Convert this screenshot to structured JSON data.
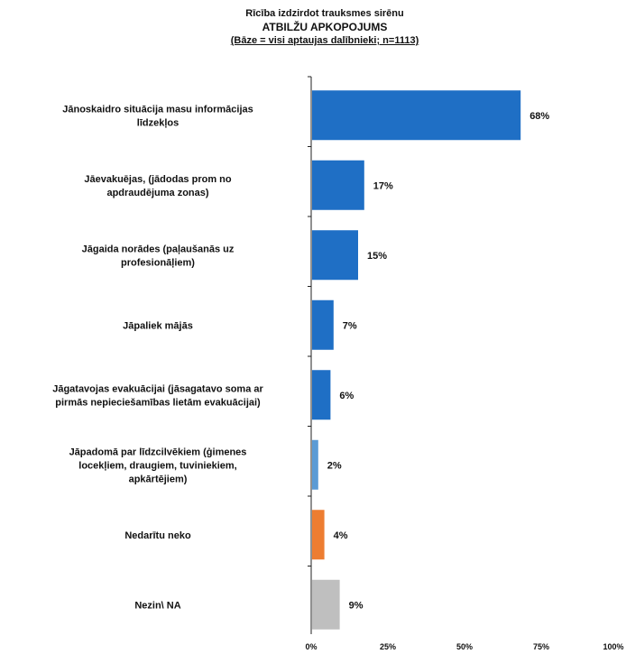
{
  "chart_data": {
    "type": "bar",
    "orientation": "horizontal",
    "title": "Rīcība izdzirdot trauksmes sirēnu",
    "subtitle": "ATBILŽU APKOPOJUMS",
    "note": "(Bāze = visi aptaujas dalībnieki; n=1113)",
    "categories": [
      [
        "Jānoskaidro situācija masu informācijas",
        "līdzekļos"
      ],
      [
        "Jāevakuējas, (jādodas prom no",
        "apdraudējuma zonas)"
      ],
      [
        "Jāgaida norādes (paļaušanās uz",
        "profesionāļiem)"
      ],
      [
        "Jāpaliek mājās"
      ],
      [
        "Jāgatavojas evakuācijai (jāsagatavo soma ar",
        "pirmās nepieciešamības lietām evakuācijai)"
      ],
      [
        "Jāpadomā par līdzcilvēkiem (ģimenes",
        "locekļiem, draugiem, tuviniekiem,",
        "apkārtējiem)"
      ],
      [
        "Nedarītu neko"
      ],
      [
        "Nezin\\ NA"
      ]
    ],
    "values": [
      68,
      17,
      15,
      7,
      6,
      2,
      4,
      9
    ],
    "value_labels": [
      "68%",
      "17%",
      "15%",
      "7%",
      "6%",
      "2%",
      "4%",
      "9%"
    ],
    "colors": [
      "#1f6fc5",
      "#1f6fc5",
      "#1f6fc5",
      "#1f6fc5",
      "#1f6fc5",
      "#5b9bd5",
      "#ed7d31",
      "#bfbfbf"
    ],
    "xlim": [
      0,
      100
    ],
    "x_ticks": [
      "0%",
      "25%",
      "50%",
      "75%",
      "100%"
    ],
    "x_tick_values": [
      0,
      25,
      50,
      75,
      100
    ],
    "grid": false,
    "legend": "none"
  }
}
